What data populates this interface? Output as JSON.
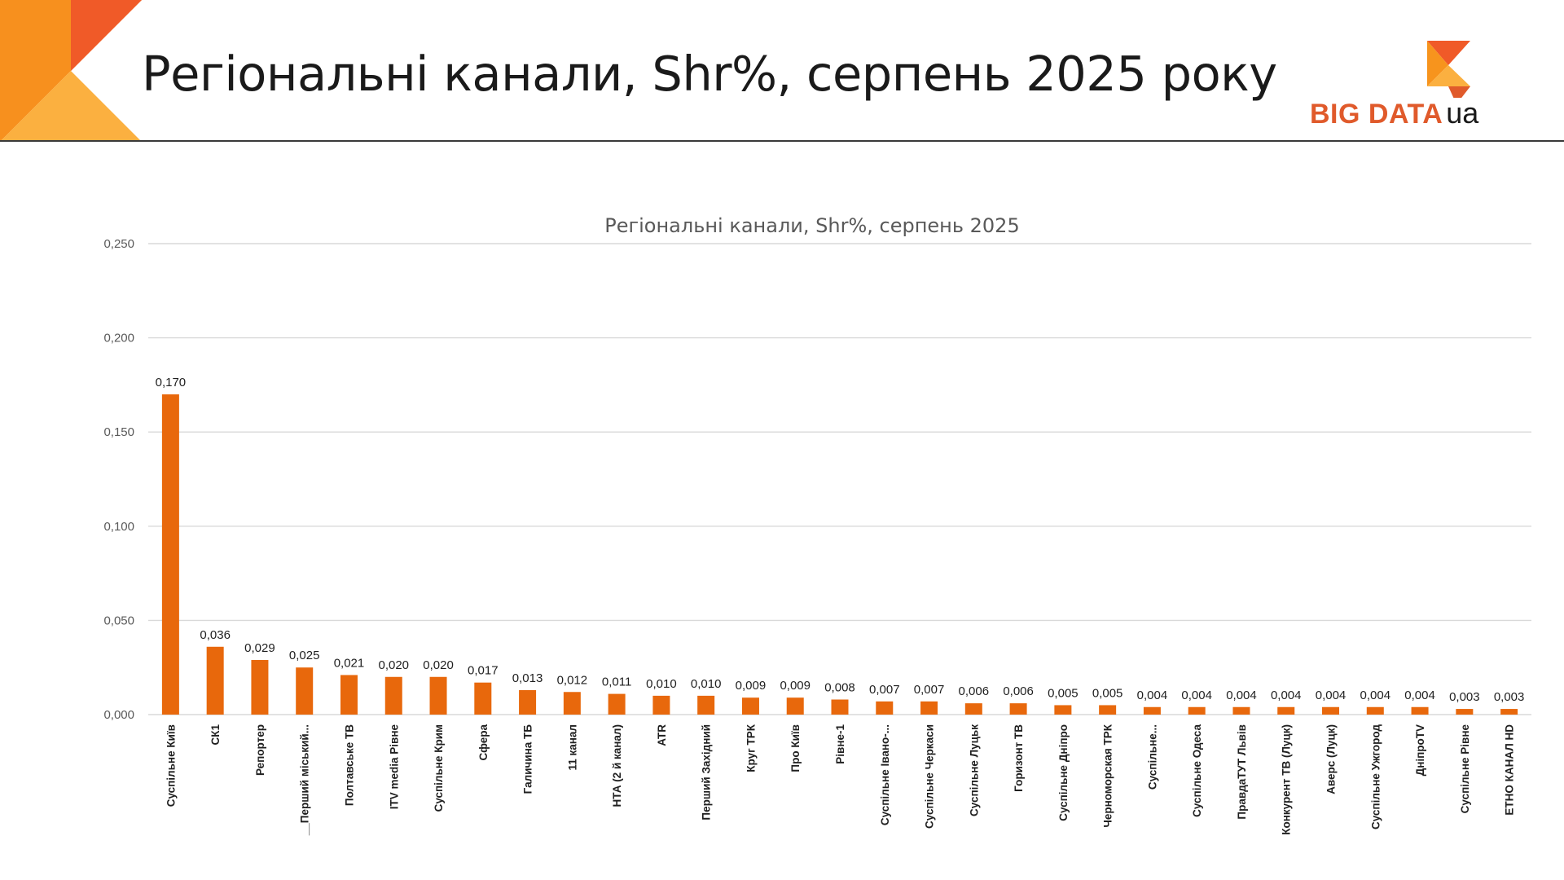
{
  "slide": {
    "title": "Регіональні канали, Shr%, серпень 2025 року",
    "logo_main": "BIG DATA",
    "logo_suffix": "ua",
    "colors": {
      "corner_dark": "#f05a28",
      "corner_mid": "#f7901e",
      "corner_light": "#fbb040",
      "logo_orange": "#f7941d",
      "logo_red": "#e05a2b"
    }
  },
  "chart_data": {
    "type": "bar",
    "title": "Регіональні канали, Shr%, серпень 2025",
    "xlabel": "",
    "ylabel": "",
    "ylim": [
      0,
      0.25
    ],
    "yticks": [
      "0,000",
      "0,050",
      "0,100",
      "0,150",
      "0,200",
      "0,250"
    ],
    "grid": true,
    "legend": "none",
    "bar_color": "#e8680c",
    "categories": [
      "Суспільне Київ",
      "СК1",
      "Репортер",
      "__Перший міський...",
      "Полтавське ТВ",
      "ITV media Рівне",
      "Суспільне Крим",
      "Сфера",
      "Галичина ТБ",
      "11 канал",
      "НТА (2 й канал)",
      "ATR",
      "Перший Західний",
      "Круг ТРК",
      "Про Київ",
      "Рівне-1",
      "Суспільне Івано-...",
      "Суспільне Черкаси",
      "Суспільне Луцьк",
      "Горизонт ТВ",
      "Суспільне Дніпро",
      "Черноморская ТРК",
      "Суспільне...",
      "Суспільне Одеса",
      "ПравдаТУТ Львів",
      "Конкурент ТВ (Луцк)",
      "Аверс (Луцк)",
      "Суспільне Ужгород",
      "ДніпроTV",
      "Суспільне Рівне",
      "ЕТНО КАНАЛ HD"
    ],
    "values": [
      0.17,
      0.036,
      0.029,
      0.025,
      0.021,
      0.02,
      0.02,
      0.017,
      0.013,
      0.012,
      0.011,
      0.01,
      0.01,
      0.009,
      0.009,
      0.008,
      0.007,
      0.007,
      0.006,
      0.006,
      0.005,
      0.005,
      0.004,
      0.004,
      0.004,
      0.004,
      0.004,
      0.004,
      0.004,
      0.003,
      0.003
    ],
    "labels": [
      "0,170",
      "0,036",
      "0,029",
      "0,025",
      "0,021",
      "0,020",
      "0,020",
      "0,017",
      "0,013",
      "0,012",
      "0,011",
      "0,010",
      "0,010",
      "0,009",
      "0,009",
      "0,008",
      "0,007",
      "0,007",
      "0,006",
      "0,006",
      "0,005",
      "0,005",
      "0,004",
      "0,004",
      "0,004",
      "0,004",
      "0,004",
      "0,004",
      "0,004",
      "0,003",
      "0,003"
    ]
  }
}
